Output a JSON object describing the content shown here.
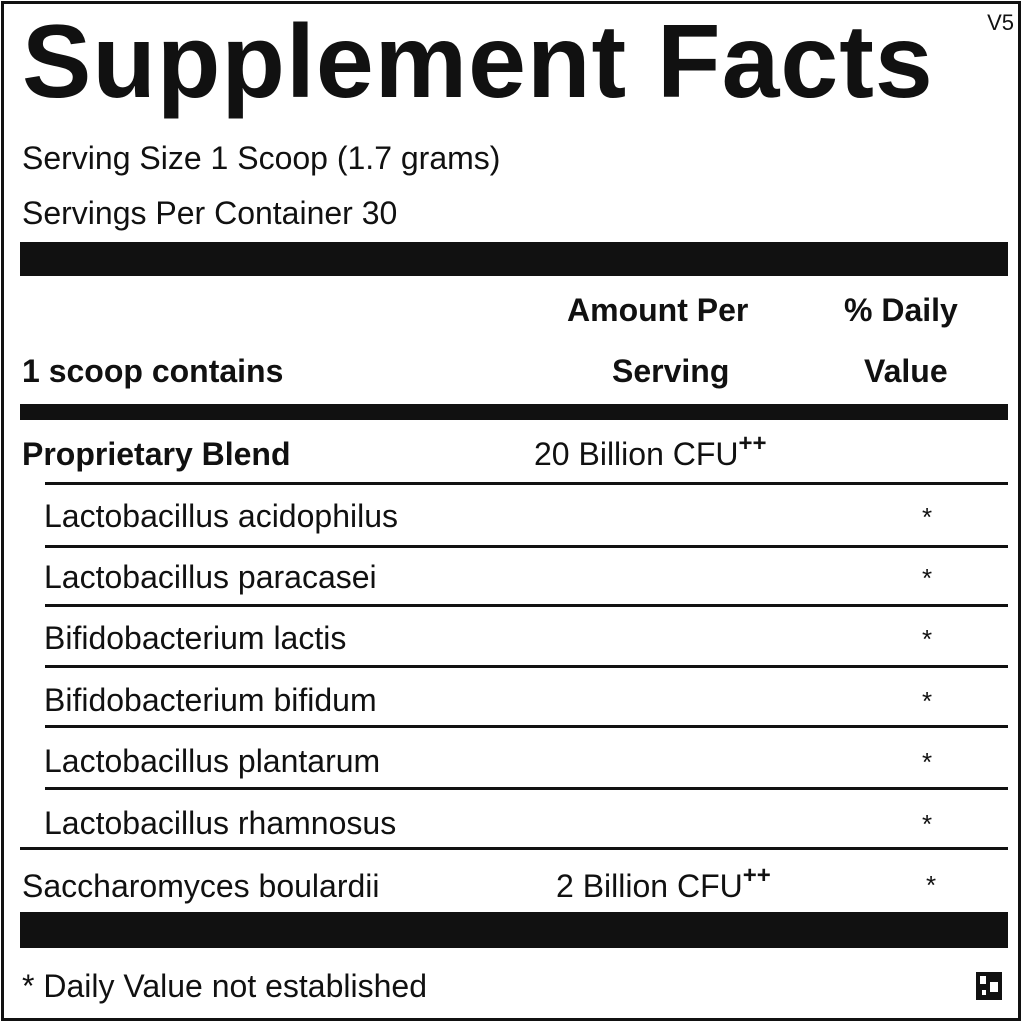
{
  "title": "Supplement Facts",
  "version": "V5",
  "serving_size": "Serving Size  1 Scoop (1.7 grams)",
  "servings_per_container": "Servings Per Container  30",
  "headers": {
    "contains": "1 scoop contains",
    "amount_line1": "Amount Per",
    "amount_line2": "Serving",
    "dv_line1": "% Daily",
    "dv_line2": "Value"
  },
  "blend": {
    "name": "Proprietary Blend",
    "amount": "20 Billion CFU",
    "mark": "++"
  },
  "ingredients": [
    {
      "name": "Lactobacillus acidophilus",
      "dv": "*"
    },
    {
      "name": "Lactobacillus paracasei",
      "dv": "*"
    },
    {
      "name": "Bifidobacterium lactis",
      "dv": "*"
    },
    {
      "name": "Bifidobacterium bifidum",
      "dv": "*"
    },
    {
      "name": "Lactobacillus plantarum",
      "dv": "*"
    },
    {
      "name": "Lactobacillus rhamnosus",
      "dv": "*"
    }
  ],
  "extra": {
    "name": "Saccharomyces boulardii",
    "amount": "2 Billion CFU",
    "mark": "++",
    "dv": "*"
  },
  "footnote": "* Daily Value not established"
}
